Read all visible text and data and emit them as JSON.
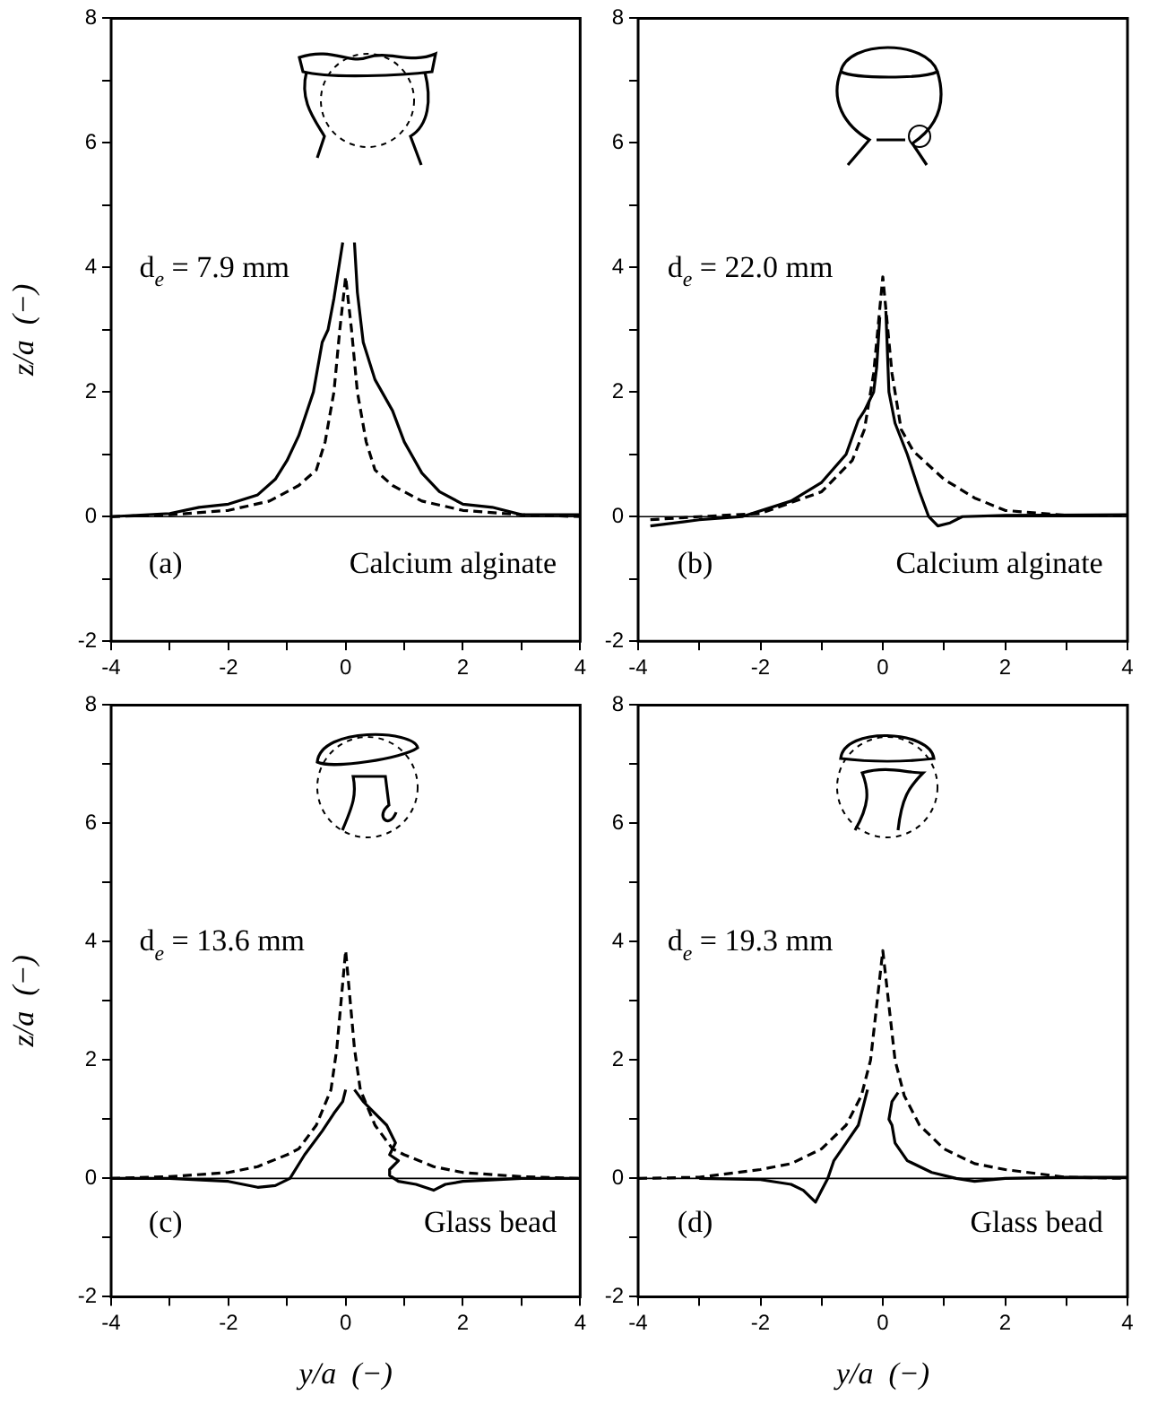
{
  "chart_data": [
    {
      "type": "line",
      "ylabel": "z/a  (−)",
      "xlim": [
        -4,
        4
      ],
      "ylim": [
        -2,
        8
      ],
      "xticks": [
        -4,
        {
          "value": -3,
          "label": null
        },
        -2,
        {
          "value": -1,
          "label": null
        },
        0,
        {
          "value": 1,
          "label": null
        },
        2,
        {
          "value": 3,
          "label": null
        },
        4
      ],
      "yticks": [
        -2,
        {
          "value": -1,
          "label": null
        },
        0,
        {
          "value": 1,
          "label": null
        },
        2,
        {
          "value": 3,
          "label": null
        },
        4,
        {
          "value": 5,
          "label": null
        },
        6,
        {
          "value": 7,
          "label": null
        },
        8
      ],
      "grid": false,
      "marker": "none",
      "ref_lines": [
        {
          "axis": "y",
          "value": 0,
          "color": "#000000"
        }
      ],
      "annotations": [
        "d$_{e}$ = 7.9 mm",
        "(a)",
        "Calcium alginate"
      ],
      "series": [
        {
          "color": "#000000",
          "line_style": "solid",
          "x": [
            -4,
            -3,
            -2.5,
            -2,
            -1.5,
            -1.2,
            -1,
            -0.8,
            -0.55,
            -0.4,
            -0.3,
            -0.2,
            -0.1,
            -0.05,
            0.05,
            0.15,
            0.2,
            0.3,
            0.5,
            0.8,
            1,
            1.3,
            1.6,
            2,
            2.5,
            3,
            4
          ],
          "values": [
            0,
            0.05,
            0.15,
            0.2,
            0.35,
            0.6,
            0.9,
            1.3,
            2,
            2.8,
            3,
            3.5,
            4.1,
            4.4,
            null,
            4.4,
            3.6,
            2.8,
            2.2,
            1.7,
            1.2,
            0.7,
            0.4,
            0.2,
            0.15,
            0.03,
            0.03
          ]
        },
        {
          "color": "#000000",
          "line_style": "dashed",
          "x": [
            -4,
            -3,
            -2,
            -1.3,
            -0.8,
            -0.5,
            -0.35,
            -0.2,
            -0.1,
            0,
            0.1,
            0.2,
            0.35,
            0.5,
            0.8,
            1.3,
            2,
            3,
            4
          ],
          "values": [
            0,
            0.03,
            0.1,
            0.25,
            0.5,
            0.75,
            1.2,
            2,
            3,
            3.85,
            3,
            2,
            1.2,
            0.75,
            0.5,
            0.25,
            0.1,
            0.03,
            0
          ]
        }
      ]
    },
    {
      "type": "line",
      "xlim": [
        -4,
        4
      ],
      "ylim": [
        -2,
        8
      ],
      "xticks": [
        -4,
        {
          "value": -3,
          "label": null
        },
        -2,
        {
          "value": -1,
          "label": null
        },
        0,
        {
          "value": 1,
          "label": null
        },
        2,
        {
          "value": 3,
          "label": null
        },
        4
      ],
      "yticks": [
        -2,
        {
          "value": -1,
          "label": null
        },
        0,
        {
          "value": 1,
          "label": null
        },
        2,
        {
          "value": 3,
          "label": null
        },
        4,
        {
          "value": 5,
          "label": null
        },
        6,
        {
          "value": 7,
          "label": null
        },
        8
      ],
      "grid": false,
      "marker": "none",
      "ref_lines": [
        {
          "axis": "y",
          "value": 0,
          "color": "#000000"
        }
      ],
      "annotations": [
        "d$_{e}$ = 22.0 mm",
        "(b)",
        "Calcium alginate"
      ],
      "series": [
        {
          "color": "#000000",
          "line_style": "solid",
          "x": [
            -3.8,
            -3,
            -2.3,
            -1.5,
            -1,
            -0.6,
            -0.4,
            -0.3,
            -0.15,
            -0.1,
            -0.05,
            0,
            0.05,
            0.1,
            0.2,
            0.4,
            0.6,
            0.75,
            0.9,
            1.1,
            1.3,
            2,
            4
          ],
          "values": [
            -0.15,
            -0.05,
            0,
            0.25,
            0.55,
            1,
            1.55,
            1.7,
            2,
            2.4,
            3.2,
            null,
            3.3,
            2,
            1.5,
            1,
            0.4,
            0,
            -0.15,
            -0.1,
            0,
            0.02,
            0.03
          ]
        },
        {
          "color": "#000000",
          "line_style": "dashed",
          "x": [
            -3.8,
            -3,
            -2,
            -1,
            -0.5,
            -0.3,
            -0.15,
            0,
            0.15,
            0.3,
            0.5,
            1,
            1.5,
            2,
            3,
            4
          ],
          "values": [
            -0.05,
            0,
            0.05,
            0.4,
            0.9,
            1.4,
            2.3,
            3.85,
            2.3,
            1.4,
            1.05,
            0.6,
            0.3,
            0.1,
            0.02,
            0.02
          ]
        }
      ]
    },
    {
      "type": "line",
      "xlabel": "y/a  (−)",
      "ylabel": "z/a  (−)",
      "xlim": [
        -4,
        4
      ],
      "ylim": [
        -2,
        8
      ],
      "xticks": [
        -4,
        {
          "value": -3,
          "label": null
        },
        -2,
        {
          "value": -1,
          "label": null
        },
        0,
        {
          "value": 1,
          "label": null
        },
        2,
        {
          "value": 3,
          "label": null
        },
        4
      ],
      "yticks": [
        -2,
        {
          "value": -1,
          "label": null
        },
        0,
        {
          "value": 1,
          "label": null
        },
        2,
        {
          "value": 3,
          "label": null
        },
        4,
        {
          "value": 5,
          "label": null
        },
        6,
        {
          "value": 7,
          "label": null
        },
        8
      ],
      "grid": false,
      "marker": "none",
      "ref_lines": [
        {
          "axis": "y",
          "value": 0,
          "color": "#000000"
        }
      ],
      "annotations": [
        "d$_{e}$ = 13.6 mm",
        "(c)",
        "Glass bead"
      ],
      "series": [
        {
          "color": "#000000",
          "line_style": "solid",
          "x": [
            -4,
            -3,
            -2,
            -1.5,
            -1.2,
            -0.95,
            -0.7,
            -0.4,
            -0.2,
            -0.05,
            0,
            0.07,
            0.15,
            0.3,
            0.5,
            0.7,
            0.85,
            0.75,
            0.9,
            0.75,
            0.75,
            0.9,
            1.2,
            1.5,
            1.7,
            2,
            3,
            4
          ],
          "values": [
            0,
            0,
            -0.05,
            -0.15,
            -0.12,
            0,
            0.4,
            0.8,
            1.1,
            1.3,
            1.5,
            null,
            1.5,
            1.3,
            1.1,
            0.9,
            0.6,
            0.4,
            0.3,
            0.15,
            0.05,
            -0.05,
            -0.1,
            -0.2,
            -0.1,
            -0.05,
            0,
            0
          ]
        },
        {
          "color": "#000000",
          "line_style": "dashed",
          "x": [
            -4,
            -3,
            -2,
            -1.5,
            -1,
            -0.8,
            -0.5,
            -0.25,
            -0.15,
            0,
            0.15,
            0.25,
            0.5,
            0.8,
            1,
            1.5,
            2,
            3,
            4
          ],
          "values": [
            0,
            0.03,
            0.1,
            0.2,
            0.4,
            0.5,
            0.9,
            1.5,
            2.2,
            3.85,
            2.2,
            1.5,
            0.9,
            0.5,
            0.4,
            0.2,
            0.1,
            0.03,
            0
          ]
        }
      ]
    },
    {
      "type": "line",
      "xlabel": "y/a  (−)",
      "xlim": [
        -4,
        4
      ],
      "ylim": [
        -2,
        8
      ],
      "xticks": [
        -4,
        {
          "value": -3,
          "label": null
        },
        -2,
        {
          "value": -1,
          "label": null
        },
        0,
        {
          "value": 1,
          "label": null
        },
        2,
        {
          "value": 3,
          "label": null
        },
        4
      ],
      "yticks": [
        -2,
        {
          "value": -1,
          "label": null
        },
        0,
        {
          "value": 1,
          "label": null
        },
        2,
        {
          "value": 3,
          "label": null
        },
        4,
        {
          "value": 5,
          "label": null
        },
        6,
        {
          "value": 7,
          "label": null
        },
        8
      ],
      "grid": false,
      "marker": "none",
      "ref_lines": [
        {
          "axis": "y",
          "value": 0,
          "color": "#000000"
        }
      ],
      "annotations": [
        "d$_{e}$ = 19.3 mm",
        "(d)",
        "Glass bead"
      ],
      "series": [
        {
          "color": "#000000",
          "line_style": "solid",
          "x": [
            -3,
            -2,
            -1.5,
            -1.3,
            -1.1,
            -1,
            -0.9,
            -0.8,
            -0.6,
            -0.4,
            -0.3,
            -0.25,
            0,
            0.25,
            0.15,
            0.1,
            0.15,
            0.2,
            0.4,
            0.8,
            1.2,
            1.5,
            2,
            3,
            4
          ],
          "values": [
            0,
            -0.02,
            -0.1,
            -0.2,
            -0.4,
            -0.2,
            0,
            0.3,
            0.6,
            0.9,
            1.3,
            1.5,
            null,
            1.45,
            1.3,
            1,
            0.9,
            0.6,
            0.3,
            0.1,
            0,
            -0.05,
            0,
            0.02,
            0.02
          ]
        },
        {
          "color": "#000000",
          "line_style": "dashed",
          "x": [
            -4,
            -3,
            -2,
            -1.5,
            -1,
            -0.6,
            -0.35,
            -0.2,
            0,
            0.2,
            0.35,
            0.6,
            1,
            1.5,
            2,
            3,
            4
          ],
          "values": [
            0,
            0.02,
            0.15,
            0.25,
            0.5,
            0.9,
            1.4,
            2,
            3.85,
            2,
            1.4,
            0.9,
            0.5,
            0.25,
            0.15,
            0.02,
            0
          ]
        }
      ]
    }
  ]
}
